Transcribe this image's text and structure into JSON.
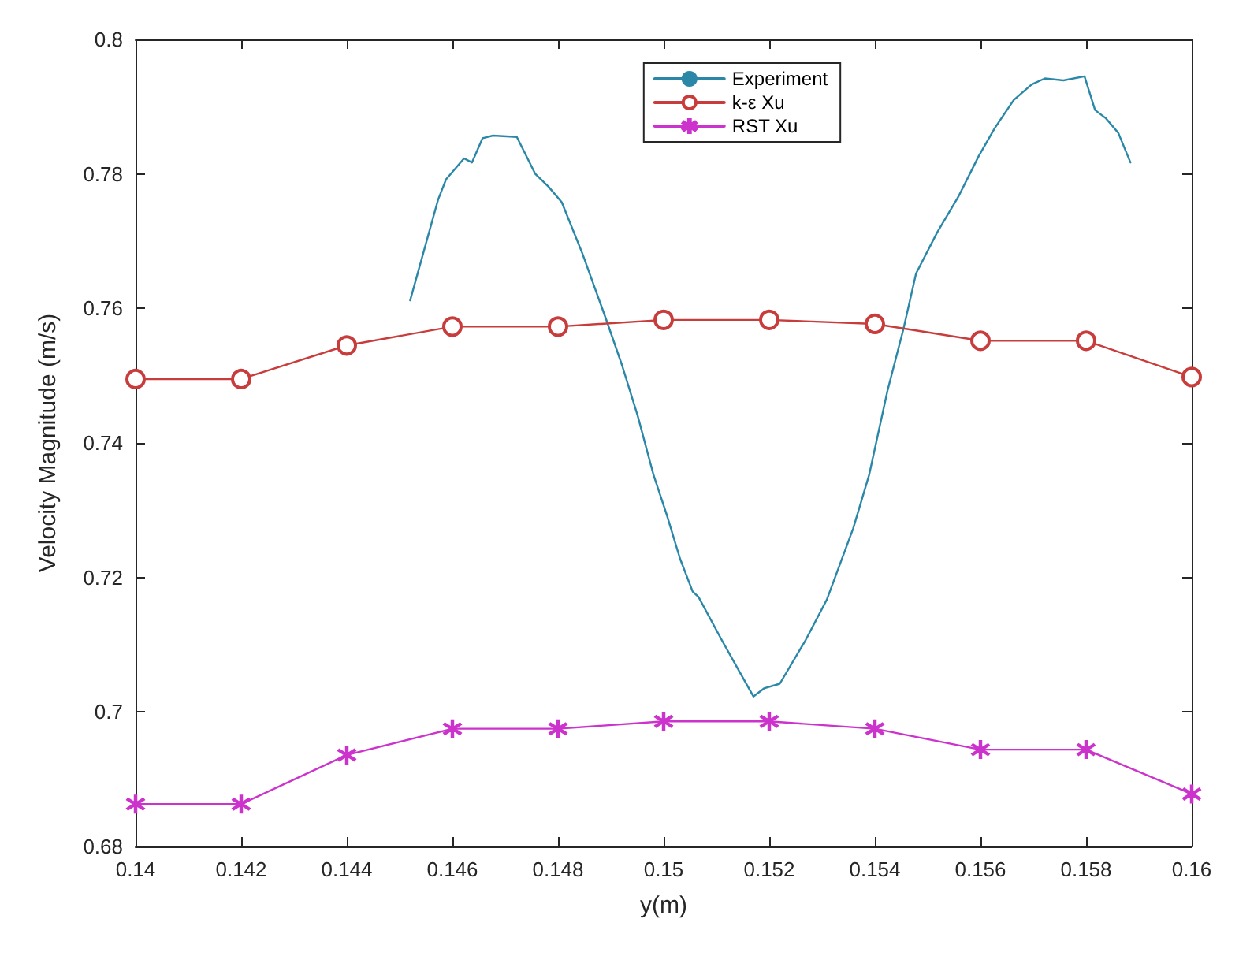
{
  "chart_data": {
    "type": "line",
    "xlabel": "y(m)",
    "ylabel": "Velocity Magnitude (m/s)",
    "xlim": [
      0.14,
      0.16
    ],
    "xticks": [
      0.14,
      0.142,
      0.144,
      0.146,
      0.148,
      0.15,
      0.152,
      0.154,
      0.156,
      0.158,
      0.16
    ],
    "ylim": [
      0.68,
      0.8
    ],
    "yticks": [
      0.68,
      0.7,
      0.72,
      0.74,
      0.76,
      0.78,
      0.8
    ],
    "grid": false,
    "legend": "top",
    "line_style": "solid",
    "series": [
      {
        "name": "Experiment",
        "color": "#2a87a8",
        "marker": "none",
        "x": [
          0.1452,
          0.14573,
          0.14588,
          0.14622,
          0.14637,
          0.14657,
          0.14677,
          0.14722,
          0.14757,
          0.14782,
          0.14807,
          0.14846,
          0.14891,
          0.14921,
          0.14951,
          0.14981,
          0.15006,
          0.15031,
          0.15055,
          0.15066,
          0.1511,
          0.15145,
          0.1517,
          0.1519,
          0.1522,
          0.15269,
          0.15309,
          0.15359,
          0.15389,
          0.15424,
          0.15454,
          0.15478,
          0.15518,
          0.15558,
          0.15597,
          0.15627,
          0.15663,
          0.15697,
          0.15722,
          0.15757,
          0.15797,
          0.15817,
          0.15837,
          0.15861,
          0.15884
        ],
        "values": [
          0.7612,
          0.7762,
          0.7792,
          0.7823,
          0.7817,
          0.7853,
          0.7857,
          0.7855,
          0.78,
          0.7781,
          0.7758,
          0.7682,
          0.7584,
          0.7516,
          0.744,
          0.7352,
          0.7293,
          0.7228,
          0.7179,
          0.7171,
          0.7107,
          0.7058,
          0.7023,
          0.7035,
          0.7042,
          0.7107,
          0.7167,
          0.7273,
          0.7352,
          0.7478,
          0.7569,
          0.7652,
          0.7713,
          0.7766,
          0.7827,
          0.7868,
          0.791,
          0.7933,
          0.7942,
          0.7939,
          0.7945,
          0.7895,
          0.7883,
          0.7861,
          0.7817
        ]
      },
      {
        "name": "k-ε Xu",
        "color": "#c83c3c",
        "marker": "circle",
        "x": [
          0.14,
          0.142,
          0.144,
          0.146,
          0.148,
          0.15,
          0.152,
          0.154,
          0.156,
          0.158,
          0.16
        ],
        "values": [
          0.7495,
          0.7495,
          0.7545,
          0.7573,
          0.7573,
          0.7583,
          0.7583,
          0.7577,
          0.7552,
          0.7552,
          0.7498
        ]
      },
      {
        "name": "RST Xu",
        "color": "#cc33cc",
        "marker": "star",
        "x": [
          0.14,
          0.142,
          0.144,
          0.146,
          0.148,
          0.15,
          0.152,
          0.154,
          0.156,
          0.158,
          0.16
        ],
        "values": [
          0.6863,
          0.6863,
          0.6936,
          0.6975,
          0.6975,
          0.6986,
          0.6986,
          0.6975,
          0.6944,
          0.6944,
          0.6878
        ]
      }
    ]
  }
}
